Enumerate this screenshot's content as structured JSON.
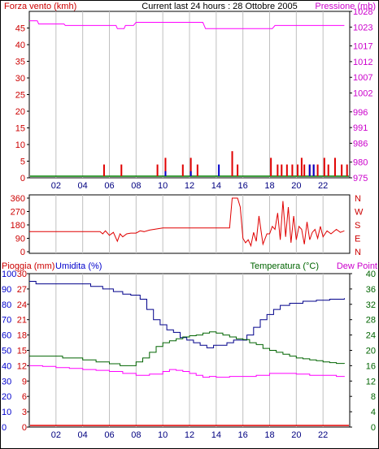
{
  "header": {
    "left": "Forza vento (kmh)",
    "center": "Current last 24 hours : 28 Ottobre 2005",
    "right": "Pressione (mb)"
  },
  "panel3_labels": {
    "pioggia": "Pioggia (mm)",
    "umidita": "Umidita (%)",
    "temperatura": "Temperatura (°C)",
    "dewpoint": "Dew Point"
  },
  "colors": {
    "wind": "#e00000",
    "gust": "#0000cc",
    "pressure": "#ff00ff",
    "baseline": "#008000",
    "humidity": "#00008b",
    "temperature": "#006400",
    "dewpoint": "#ff00ff",
    "rain": "#e00000",
    "grid": "#c0c0c0"
  },
  "chart_data": [
    {
      "type": "bar",
      "x": [
        5.6,
        6.9,
        9.6,
        10.2,
        11.5,
        12.1,
        12.6,
        15.2,
        15.6,
        18.1,
        18.6,
        18.9,
        19.3,
        19.7,
        20.1,
        20.4,
        20.6,
        21.0,
        21.3,
        21.6,
        22.1,
        22.4,
        22.9,
        23.4,
        23.8
      ],
      "values": [
        4,
        4,
        4,
        6,
        4,
        6,
        4,
        8,
        4,
        6,
        4,
        4,
        4,
        4,
        4,
        6,
        4,
        4,
        4,
        4,
        6,
        4,
        6,
        4,
        4
      ],
      "gust_x": [
        10.2,
        12.1,
        14.2,
        21.0,
        21.3
      ],
      "gust_values": [
        2,
        2,
        4,
        4,
        4
      ],
      "x_ticks": [
        "02",
        "04",
        "06",
        "08",
        "10",
        "12",
        "14",
        "16",
        "18",
        "20",
        "22"
      ],
      "y_left_ticks": [
        0,
        5,
        10,
        15,
        20,
        25,
        30,
        35,
        40,
        45
      ],
      "ylim_left": [
        0,
        50
      ],
      "y_right_ticks": [
        975,
        980,
        986,
        991,
        996,
        1002,
        1007,
        1012,
        1017,
        1023,
        1028
      ],
      "ylim_right": [
        975,
        1028
      ],
      "pressure": {
        "x": [
          0,
          0.6,
          0.7,
          2.6,
          2.7,
          6.5,
          6.6,
          7.1,
          7.2,
          7.8,
          8.0,
          13.0,
          13.2,
          14.5,
          14.7,
          18.2,
          18.4,
          23.6
        ],
        "values": [
          1025,
          1025,
          1024,
          1024,
          1023.5,
          1023.5,
          1022.5,
          1022.5,
          1023.5,
          1023.5,
          1024.5,
          1024.5,
          1022.5,
          1022.5,
          1022.5,
          1022.5,
          1023.5,
          1023.5
        ]
      }
    },
    {
      "type": "line",
      "x": [
        0,
        5.3,
        5.5,
        5.7,
        6.0,
        6.3,
        6.6,
        6.8,
        7.0,
        7.3,
        7.6,
        8.0,
        8.3,
        8.6,
        9.0,
        10.0,
        15.0,
        15.2,
        15.4,
        15.6,
        15.8,
        16.0,
        16.2,
        16.4,
        16.6,
        16.8,
        17.0,
        17.2,
        17.5,
        17.8,
        18.0,
        18.2,
        18.4,
        18.6,
        18.8,
        19.0,
        19.2,
        19.4,
        19.6,
        19.8,
        20.0,
        20.2,
        20.4,
        20.6,
        20.8,
        21.0,
        21.2,
        21.4,
        21.6,
        21.8,
        22.0,
        22.3,
        22.6,
        23.0,
        23.3,
        23.6
      ],
      "values": [
        135,
        135,
        120,
        140,
        110,
        130,
        70,
        120,
        100,
        120,
        125,
        125,
        140,
        135,
        145,
        160,
        160,
        360,
        360,
        360,
        300,
        90,
        60,
        80,
        40,
        130,
        70,
        240,
        50,
        120,
        120,
        170,
        150,
        260,
        80,
        340,
        100,
        300,
        60,
        240,
        80,
        170,
        150,
        50,
        200,
        80,
        130,
        150,
        90,
        170,
        100,
        140,
        120,
        150,
        130,
        140
      ],
      "x_ticks": [
        "02",
        "04",
        "06",
        "08",
        "10",
        "12",
        "14",
        "16",
        "18",
        "20",
        "22"
      ],
      "y_ticks": [
        0,
        90,
        180,
        270,
        360
      ],
      "y_right_labels": [
        "N",
        "E",
        "S",
        "W",
        "N"
      ],
      "ylim": [
        0,
        360
      ]
    },
    {
      "type": "line",
      "x_ticks": [
        "02",
        "04",
        "06",
        "08",
        "10",
        "12",
        "14",
        "16",
        "18",
        "20",
        "22"
      ],
      "y_left_rain_ticks": [
        0,
        10,
        20,
        30,
        40,
        50,
        60,
        70,
        80,
        90,
        100
      ],
      "y_left_hum_ticks": [
        0,
        3,
        6,
        9,
        12,
        15,
        18,
        21,
        24,
        27,
        30
      ],
      "ylim_rain": [
        0,
        100
      ],
      "ylim_humidity": [
        0,
        30
      ],
      "y_right_ticks": [
        0,
        4,
        8,
        12,
        16,
        20,
        24,
        28,
        32,
        36,
        40
      ],
      "ylim_right": [
        0,
        40
      ],
      "series": [
        {
          "name": "Umidita",
          "axis": "humidity",
          "x": [
            0,
            0.5,
            2.0,
            4.0,
            4.6,
            5.5,
            6.3,
            7.0,
            7.6,
            8.3,
            8.8,
            9.3,
            9.8,
            10.3,
            10.8,
            11.3,
            11.8,
            12.3,
            12.8,
            13.3,
            13.8,
            14.3,
            14.8,
            15.3,
            15.8,
            16.3,
            16.8,
            17.3,
            17.8,
            18.3,
            18.8,
            19.5,
            20.5,
            21.5,
            22.5,
            23.6
          ],
          "values": [
            28.5,
            28.0,
            28.0,
            28.0,
            27.5,
            27.0,
            26.5,
            26.0,
            25.8,
            25.0,
            23.0,
            21.0,
            20.0,
            19.0,
            18.5,
            17.5,
            17.0,
            16.5,
            16.0,
            15.5,
            16.0,
            16.0,
            16.5,
            17.0,
            17.0,
            18.0,
            19.5,
            21.0,
            22.0,
            23.0,
            23.8,
            24.2,
            24.6,
            24.8,
            25.0,
            25.2
          ]
        },
        {
          "name": "Temperatura",
          "axis": "right",
          "x": [
            0,
            1.0,
            2.5,
            4.0,
            5.0,
            6.0,
            6.8,
            7.5,
            8.0,
            8.5,
            9.0,
            9.5,
            10.0,
            10.5,
            11.0,
            11.5,
            12.0,
            12.5,
            13.0,
            13.5,
            14.0,
            14.5,
            15.0,
            15.5,
            16.0,
            16.5,
            17.0,
            17.5,
            18.0,
            18.5,
            19.0,
            19.5,
            20.0,
            20.5,
            21.0,
            21.5,
            22.0,
            22.5,
            23.0,
            23.6
          ],
          "values": [
            18.5,
            18.5,
            18.0,
            17.5,
            17.0,
            16.5,
            16.0,
            16.0,
            17.0,
            18.0,
            19.5,
            21.0,
            22.0,
            22.5,
            23.0,
            23.5,
            23.8,
            24.0,
            24.5,
            24.8,
            24.5,
            24.0,
            23.5,
            23.0,
            22.8,
            22.0,
            21.5,
            20.5,
            20.0,
            19.5,
            19.0,
            18.5,
            18.0,
            17.8,
            17.5,
            17.3,
            17.0,
            16.8,
            16.6,
            16.5
          ]
        },
        {
          "name": "Dew Point",
          "axis": "right",
          "x": [
            0,
            1.0,
            2.0,
            3.0,
            4.0,
            5.0,
            6.0,
            7.0,
            8.0,
            9.0,
            10.0,
            10.5,
            11.0,
            11.5,
            12.0,
            12.5,
            13.0,
            13.5,
            14.0,
            15.0,
            16.0,
            17.0,
            18.0,
            19.0,
            20.0,
            21.0,
            22.0,
            23.0,
            23.6
          ],
          "values": [
            16.0,
            15.8,
            15.5,
            15.3,
            15.0,
            14.8,
            14.5,
            14.0,
            13.5,
            13.8,
            14.5,
            15.0,
            14.8,
            14.5,
            14.0,
            13.5,
            13.0,
            13.2,
            13.0,
            13.2,
            13.2,
            13.5,
            14.0,
            14.0,
            13.8,
            13.5,
            13.5,
            13.2,
            13.3
          ]
        },
        {
          "name": "Pioggia",
          "axis": "rain",
          "x": [
            0,
            23.6
          ],
          "values": [
            0,
            0
          ]
        }
      ]
    }
  ]
}
